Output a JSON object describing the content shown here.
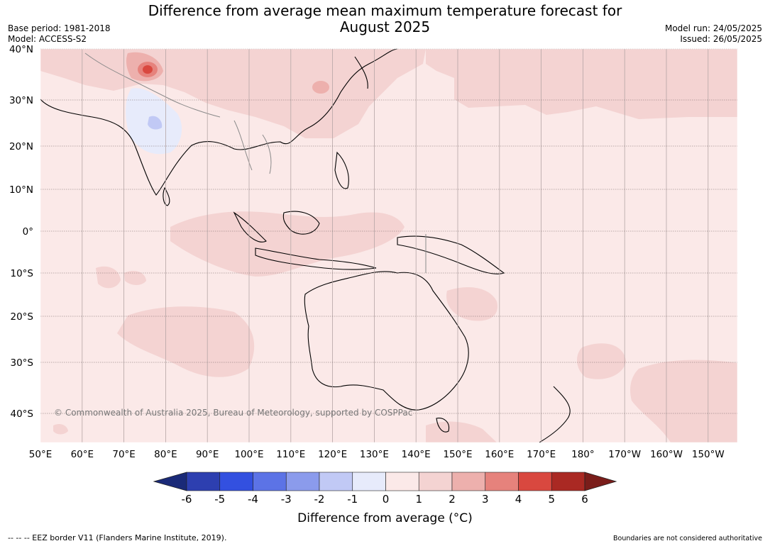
{
  "title_line1": "Difference from average mean maximum temperature forecast for",
  "title_line2": "August 2025",
  "base_period": "Base period: 1981-2018",
  "model": "Model: ACCESS-S2",
  "model_run": "Model run: 24/05/2025",
  "issued": "Issued: 26/05/2025",
  "copyright": "© Commonwealth of Australia 2025, Bureau of Meteorology, supported by COSPPac",
  "lat_labels": [
    "40°N",
    "30°N",
    "20°N",
    "10°N",
    "0°",
    "10°S",
    "20°S",
    "30°S",
    "40°S"
  ],
  "lon_labels": [
    "50°E",
    "60°E",
    "70°E",
    "80°E",
    "90°E",
    "100°E",
    "110°E",
    "120°E",
    "130°E",
    "140°E",
    "150°E",
    "160°E",
    "170°E",
    "180°",
    "170°W",
    "160°W",
    "150°W"
  ],
  "colorbar": {
    "ticks": [
      "-6",
      "-5",
      "-4",
      "-3",
      "-2",
      "-1",
      "0",
      "1",
      "2",
      "3",
      "4",
      "5",
      "6"
    ],
    "colors": [
      "#1a2a78",
      "#2d3fb0",
      "#3350e0",
      "#5c73e6",
      "#8b9bec",
      "#c1c9f5",
      "#e7ebfb",
      "#fbe9e8",
      "#f4d3d2",
      "#edb0ad",
      "#e6827c",
      "#d9483f",
      "#aa2923",
      "#7a1d1a"
    ],
    "label": "Difference from average (°C)"
  },
  "footer_left": "--  --  -- EEZ border V11 (Flanders Marine Institute, 2019).",
  "footer_right": "Boundaries are not considered authoritative"
}
